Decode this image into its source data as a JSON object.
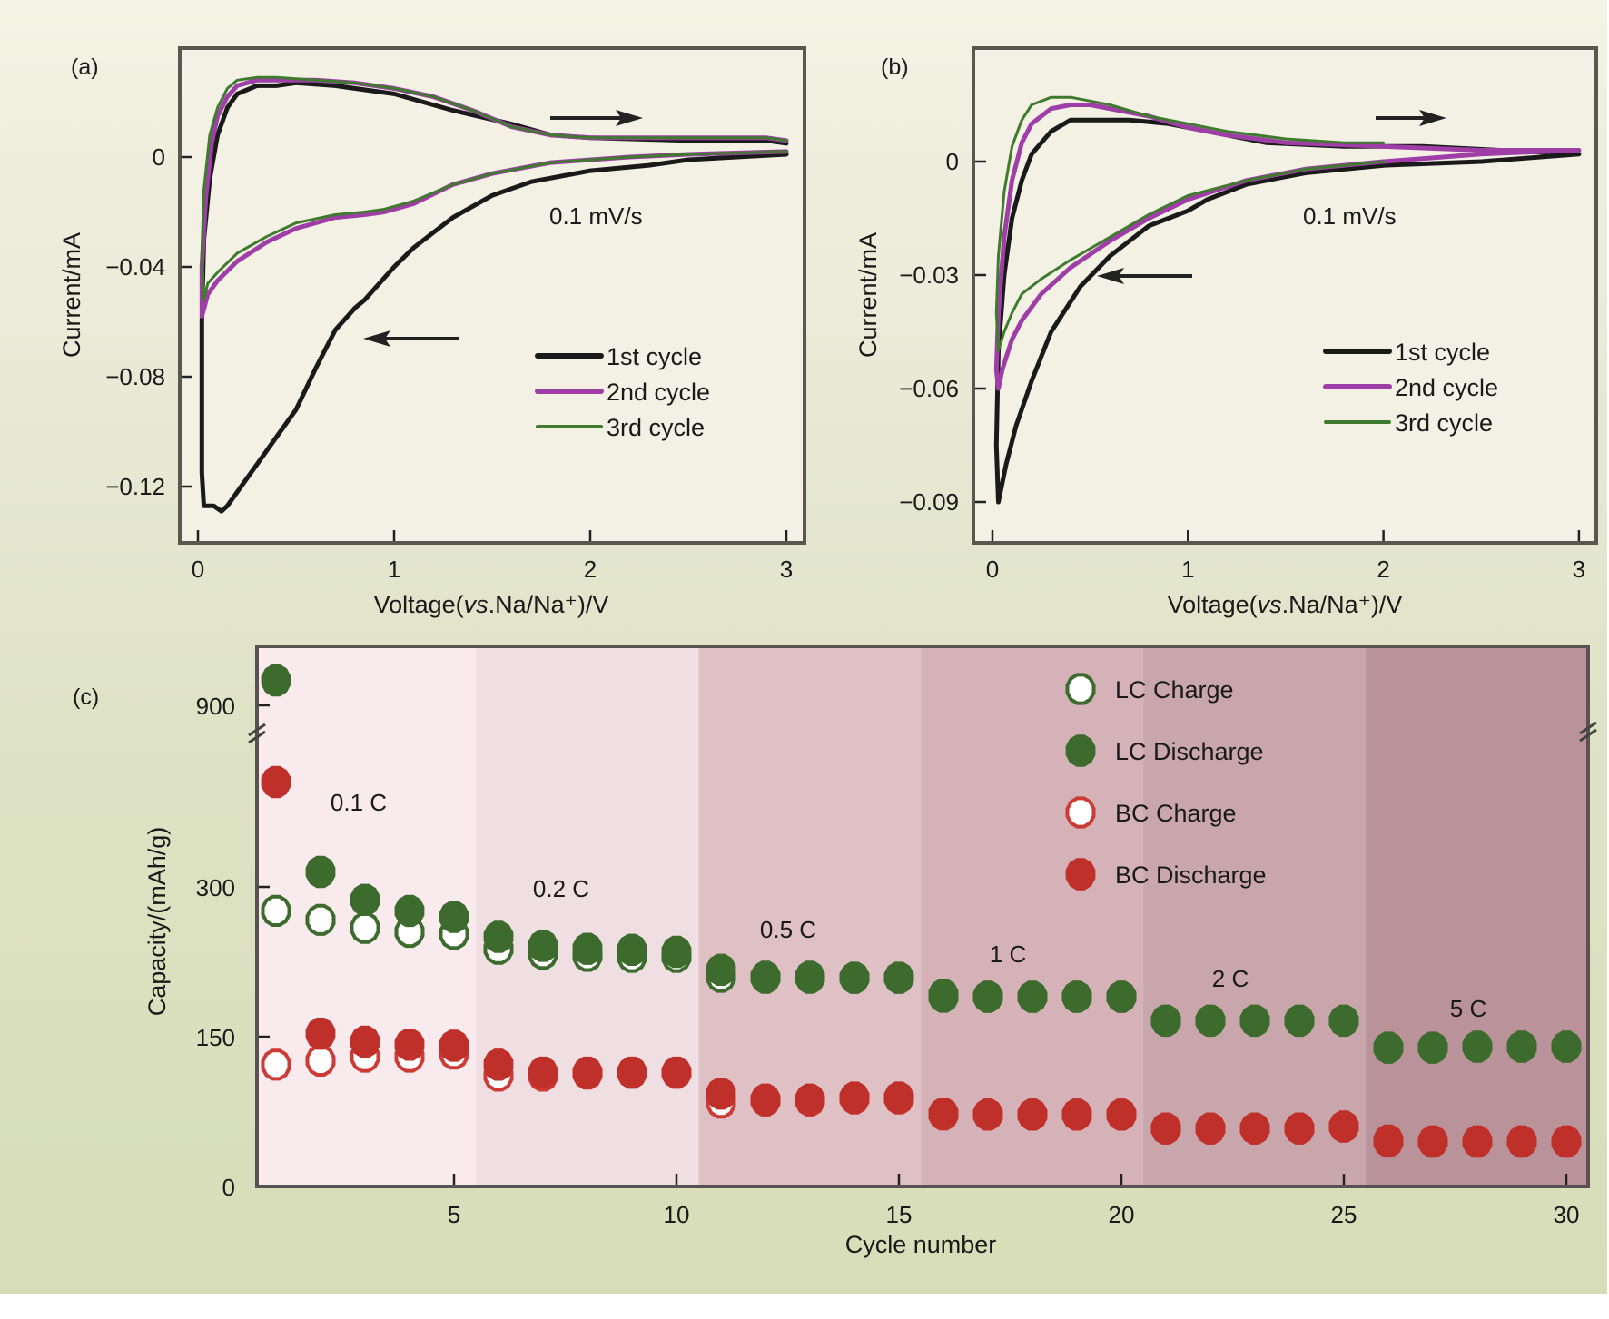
{
  "chart_data": [
    {
      "id": "a",
      "type": "line",
      "panel_label": "(a)",
      "xlabel": "Voltage(vs.Na/Na⁺)/V",
      "ylabel": "Current/mA",
      "x_ticks": [
        "0",
        "1",
        "2",
        "3"
      ],
      "x_tick_values": [
        0,
        1,
        2,
        3
      ],
      "y_ticks": [
        "0",
        "−0.04",
        "−0.08",
        "−0.12"
      ],
      "y_tick_values": [
        0,
        -0.04,
        -0.08,
        -0.12
      ],
      "xlim": [
        -0.1,
        3.05
      ],
      "ylim": [
        -0.142,
        0.04
      ],
      "annotation": "0.1 mV/s",
      "legend_position": "right",
      "legend": [
        "1st cycle",
        "2nd cycle",
        "3rd cycle"
      ],
      "series": [
        {
          "name": "1st cycle",
          "color": "#1a1a1a",
          "x": [
            3.0,
            2.5,
            2.3,
            2.0,
            1.7,
            1.5,
            1.3,
            1.1,
            1.0,
            0.85,
            0.8,
            0.7,
            0.6,
            0.5,
            0.4,
            0.3,
            0.22,
            0.15,
            0.12,
            0.08,
            0.03,
            0.02,
            0.02,
            0.03,
            0.06,
            0.1,
            0.15,
            0.2,
            0.3,
            0.4,
            0.5,
            0.7,
            1.0,
            1.3,
            1.6,
            1.8,
            2.0,
            2.5,
            2.9,
            3.0
          ],
          "y": [
            0.001,
            -0.001,
            -0.003,
            -0.005,
            -0.009,
            -0.014,
            -0.022,
            -0.033,
            -0.04,
            -0.052,
            -0.055,
            -0.063,
            -0.077,
            -0.092,
            -0.102,
            -0.112,
            -0.12,
            -0.127,
            -0.129,
            -0.127,
            -0.127,
            -0.115,
            -0.06,
            -0.03,
            -0.008,
            0.008,
            0.018,
            0.023,
            0.026,
            0.026,
            0.027,
            0.026,
            0.023,
            0.017,
            0.012,
            0.008,
            0.007,
            0.006,
            0.006,
            0.005
          ]
        },
        {
          "name": "2nd cycle",
          "color": "#a03ea8",
          "x": [
            3.0,
            2.5,
            2.2,
            1.8,
            1.5,
            1.3,
            1.1,
            0.95,
            0.85,
            0.7,
            0.5,
            0.35,
            0.2,
            0.1,
            0.05,
            0.02,
            0.02,
            0.04,
            0.07,
            0.1,
            0.15,
            0.2,
            0.3,
            0.4,
            0.6,
            0.8,
            1.0,
            1.2,
            1.4,
            1.6,
            1.8,
            2.0,
            2.5,
            2.9,
            3.0
          ],
          "y": [
            0.002,
            0.001,
            0.0,
            -0.002,
            -0.006,
            -0.01,
            -0.017,
            -0.02,
            -0.021,
            -0.022,
            -0.026,
            -0.031,
            -0.038,
            -0.045,
            -0.05,
            -0.058,
            -0.04,
            -0.015,
            0.005,
            0.015,
            0.022,
            0.026,
            0.028,
            0.028,
            0.028,
            0.027,
            0.025,
            0.022,
            0.017,
            0.011,
            0.008,
            0.007,
            0.007,
            0.007,
            0.006
          ]
        },
        {
          "name": "3rd cycle",
          "color": "#3f7a2e",
          "x": [
            3.0,
            2.5,
            2.2,
            1.8,
            1.5,
            1.3,
            1.1,
            0.95,
            0.85,
            0.7,
            0.5,
            0.35,
            0.2,
            0.1,
            0.05,
            0.03,
            0.02,
            0.03,
            0.06,
            0.1,
            0.15,
            0.2,
            0.3,
            0.4,
            0.6,
            0.8,
            1.0,
            1.2,
            1.4,
            1.6,
            1.8,
            2.0,
            2.5,
            2.9,
            3.0
          ],
          "y": [
            0.002,
            0.001,
            0.0,
            -0.002,
            -0.006,
            -0.01,
            -0.016,
            -0.019,
            -0.02,
            -0.021,
            -0.024,
            -0.029,
            -0.035,
            -0.042,
            -0.046,
            -0.052,
            -0.035,
            -0.012,
            0.008,
            0.018,
            0.025,
            0.028,
            0.029,
            0.029,
            0.028,
            0.027,
            0.025,
            0.022,
            0.017,
            0.011,
            0.008,
            0.007,
            0.007,
            0.007,
            0.006
          ]
        }
      ],
      "arrows": [
        {
          "direction": "right"
        },
        {
          "direction": "left"
        }
      ]
    },
    {
      "id": "b",
      "type": "line",
      "panel_label": "(b)",
      "xlabel": "Voltage(vs.Na/Na⁺)/V",
      "ylabel": "Current/mA",
      "x_ticks": [
        "0",
        "1",
        "2",
        "3"
      ],
      "x_tick_values": [
        0,
        1,
        2,
        3
      ],
      "y_ticks": [
        "0",
        "−0.03",
        "−0.06",
        "−0.09"
      ],
      "y_tick_values": [
        0,
        -0.03,
        -0.06,
        -0.09
      ],
      "xlim": [
        -0.1,
        3.02
      ],
      "ylim": [
        -0.101,
        0.03
      ],
      "annotation": "0.1 mV/s",
      "legend_position": "right",
      "legend": [
        "1st cycle",
        "2nd cycle",
        "3rd cycle"
      ],
      "series": [
        {
          "name": "1st cycle",
          "color": "#1a1a1a",
          "x": [
            3.0,
            2.5,
            2.0,
            1.6,
            1.3,
            1.1,
            1.0,
            0.9,
            0.8,
            0.6,
            0.45,
            0.3,
            0.2,
            0.12,
            0.07,
            0.03,
            0.02,
            0.03,
            0.06,
            0.1,
            0.15,
            0.2,
            0.3,
            0.4,
            0.5,
            0.6,
            0.7,
            0.9,
            1.1,
            1.4,
            1.8,
            2.2,
            2.6,
            3.0
          ],
          "y": [
            0.002,
            0.0,
            -0.001,
            -0.003,
            -0.006,
            -0.01,
            -0.013,
            -0.015,
            -0.017,
            -0.025,
            -0.033,
            -0.045,
            -0.058,
            -0.07,
            -0.08,
            -0.09,
            -0.075,
            -0.05,
            -0.03,
            -0.015,
            -0.005,
            0.002,
            0.008,
            0.011,
            0.011,
            0.011,
            0.011,
            0.01,
            0.008,
            0.005,
            0.004,
            0.004,
            0.003,
            0.002
          ]
        },
        {
          "name": "2nd cycle",
          "color": "#a03ea8",
          "x": [
            3.0,
            2.5,
            2.0,
            1.6,
            1.3,
            1.0,
            0.8,
            0.6,
            0.4,
            0.25,
            0.15,
            0.1,
            0.05,
            0.03,
            0.02,
            0.03,
            0.06,
            0.1,
            0.15,
            0.2,
            0.3,
            0.4,
            0.5,
            0.6,
            0.8,
            1.0,
            1.2,
            1.5,
            2.0,
            2.5,
            3.0
          ],
          "y": [
            0.003,
            0.002,
            0.0,
            -0.002,
            -0.005,
            -0.01,
            -0.015,
            -0.021,
            -0.028,
            -0.035,
            -0.042,
            -0.047,
            -0.055,
            -0.06,
            -0.055,
            -0.04,
            -0.02,
            -0.005,
            0.005,
            0.01,
            0.014,
            0.015,
            0.015,
            0.014,
            0.012,
            0.009,
            0.007,
            0.005,
            0.004,
            0.003,
            0.003
          ]
        },
        {
          "name": "3rd cycle",
          "color": "#3f7a2e",
          "x": [
            2.0,
            1.6,
            1.3,
            1.0,
            0.8,
            0.6,
            0.4,
            0.25,
            0.15,
            0.1,
            0.06,
            0.03,
            0.02,
            0.03,
            0.06,
            0.1,
            0.15,
            0.2,
            0.3,
            0.4,
            0.5,
            0.6,
            0.8,
            1.0,
            1.2,
            1.5,
            1.8,
            2.0
          ],
          "y": [
            0.0,
            -0.002,
            -0.005,
            -0.009,
            -0.014,
            -0.02,
            -0.026,
            -0.031,
            -0.035,
            -0.04,
            -0.045,
            -0.05,
            -0.04,
            -0.025,
            -0.008,
            0.004,
            0.011,
            0.015,
            0.017,
            0.017,
            0.016,
            0.015,
            0.012,
            0.01,
            0.008,
            0.006,
            0.005,
            0.005
          ]
        }
      ],
      "arrows": [
        {
          "direction": "right"
        },
        {
          "direction": "left"
        }
      ]
    },
    {
      "id": "c",
      "type": "scatter",
      "panel_label": "(c)",
      "xlabel": "Cycle number",
      "ylabel": "Capacity/(mAh/g)",
      "x_ticks": [
        "5",
        "10",
        "15",
        "20",
        "25",
        "30"
      ],
      "x_tick_values": [
        5,
        10,
        15,
        20,
        25,
        30
      ],
      "y_ticks": [
        "0",
        "150",
        "300",
        "900"
      ],
      "y_tick_values": [
        0,
        150,
        300,
        900
      ],
      "xlim": [
        0.5,
        30.5
      ],
      "ylim": [
        0,
        950
      ],
      "axis_break": "between 300 and 900",
      "legend_position": "top-right",
      "rate_regions": [
        {
          "label": "0.1 C",
          "cycles": [
            1,
            5
          ],
          "color": "#f9eaee"
        },
        {
          "label": "0.2 C",
          "cycles": [
            6,
            10
          ],
          "color": "#efdfe2"
        },
        {
          "label": "0.5 C",
          "cycles": [
            11,
            15
          ],
          "color": "#dfc0c5"
        },
        {
          "label": "1 C",
          "cycles": [
            16,
            20
          ],
          "color": "#d4b2b7"
        },
        {
          "label": "2 C",
          "cycles": [
            21,
            25
          ],
          "color": "#c9a6ac"
        },
        {
          "label": "5 C",
          "cycles": [
            26,
            30
          ],
          "color": "#ba939a"
        }
      ],
      "x": [
        1,
        2,
        3,
        4,
        5,
        6,
        7,
        8,
        9,
        10,
        11,
        12,
        13,
        14,
        15,
        16,
        17,
        18,
        19,
        20,
        21,
        22,
        23,
        24,
        25,
        26,
        27,
        28,
        29,
        30
      ],
      "series": [
        {
          "name": "LC Charge",
          "marker": "open",
          "color": "#3d6b2e",
          "values": [
            276,
            267,
            259,
            255,
            253,
            238,
            233,
            231,
            230,
            230,
            210,
            209,
            209,
            209,
            209,
            190,
            190,
            190,
            190,
            190,
            166,
            166,
            166,
            166,
            166,
            139,
            139,
            140,
            140,
            140
          ]
        },
        {
          "name": "LC Discharge",
          "marker": "filled",
          "color": "#3d6b2e",
          "values": [
            925,
            315,
            287,
            276,
            270,
            250,
            241,
            238,
            237,
            235,
            217,
            210,
            210,
            209,
            209,
            192,
            190,
            190,
            190,
            190,
            166,
            166,
            166,
            166,
            166,
            139,
            139,
            140,
            140,
            140
          ]
        },
        {
          "name": "BC Charge",
          "marker": "open",
          "color": "#cc3b36",
          "values": [
            122,
            126,
            130,
            130,
            133,
            111,
            111,
            113,
            114,
            114,
            84,
            86,
            86,
            88,
            88,
            72,
            72,
            72,
            72,
            72,
            58,
            58,
            58,
            58,
            60,
            45,
            45,
            45,
            45,
            45
          ]
        },
        {
          "name": "BC Discharge",
          "marker": "filled",
          "color": "#c0302b",
          "values": [
            405,
            153,
            145,
            142,
            141,
            122,
            114,
            114,
            114,
            114,
            93,
            87,
            87,
            89,
            89,
            73,
            72,
            72,
            72,
            72,
            58,
            58,
            58,
            58,
            60,
            46,
            45,
            45,
            45,
            45
          ]
        }
      ]
    }
  ]
}
